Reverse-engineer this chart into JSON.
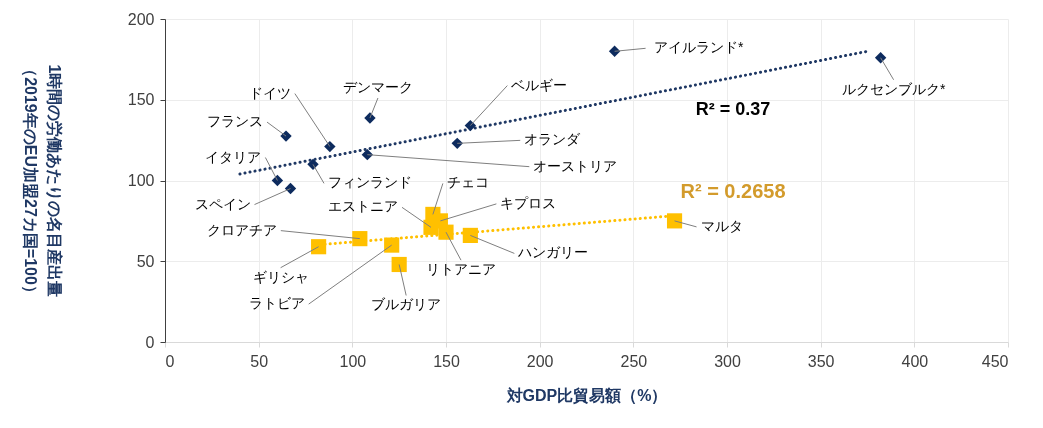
{
  "chart_data": {
    "type": "scatter",
    "xlabel": "対GDP比貿易額（%）",
    "ylabel": "1時間の労働あたりの名目産出量（2019年のEU加盟27カ国=100）",
    "xlim": [
      0,
      450
    ],
    "xticks": [
      0,
      50,
      100,
      150,
      200,
      250,
      300,
      350,
      400,
      450
    ],
    "ylim": [
      0,
      200
    ],
    "yticks": [
      0,
      50,
      100,
      150,
      200
    ],
    "grid": true,
    "series": [
      {
        "type": "line",
        "color": "#1f3864",
        "line_style": "dotted",
        "x": [
          40,
          375
        ],
        "values": [
          104,
          180
        ]
      },
      {
        "type": "line",
        "color": "#ffc000",
        "line_style": "dotted",
        "x": [
          80,
          270
        ],
        "values": [
          60,
          78
        ]
      },
      {
        "color": "#0d2b5e",
        "marker": "diamond",
        "x": [
          64.6,
          88,
          109.4,
          79,
          108,
          60,
          67,
          163,
          156,
          240,
          382
        ],
        "values": [
          127.5,
          121,
          138.7,
          110,
          116,
          100,
          95,
          134,
          123,
          180,
          176
        ]
      },
      {
        "color": "#ffc000",
        "marker": "square",
        "x": [
          82,
          104,
          121,
          125,
          143,
          147,
          142,
          150,
          163,
          272
        ],
        "values": [
          59,
          64,
          60,
          48,
          79,
          75,
          71,
          68,
          66,
          75
        ]
      }
    ],
    "annotations": [
      {
        "text": "フランス",
        "x": 64.6,
        "y": 127.5
      },
      {
        "text": "ドイツ",
        "x": 88,
        "y": 121
      },
      {
        "text": "デンマーク",
        "x": 109.4,
        "y": 138.7
      },
      {
        "text": "フィンランド",
        "x": 79,
        "y": 110
      },
      {
        "text": "オーストリア",
        "x": 108,
        "y": 116
      },
      {
        "text": "イタリア",
        "x": 60,
        "y": 100
      },
      {
        "text": "スペイン",
        "x": 67,
        "y": 95
      },
      {
        "text": "ベルギー",
        "x": 163,
        "y": 134
      },
      {
        "text": "オランダ",
        "x": 156,
        "y": 123
      },
      {
        "text": "アイルランド*",
        "x": 240,
        "y": 180
      },
      {
        "text": "ルクセンブルク*",
        "x": 382,
        "y": 176
      },
      {
        "text": "ギリシャ",
        "x": 82,
        "y": 59
      },
      {
        "text": "クロアチア",
        "x": 104,
        "y": 64
      },
      {
        "text": "ラトビア",
        "x": 121,
        "y": 60
      },
      {
        "text": "ブルガリア",
        "x": 125,
        "y": 48
      },
      {
        "text": "チェコ",
        "x": 143,
        "y": 79
      },
      {
        "text": "キプロス",
        "x": 147,
        "y": 75
      },
      {
        "text": "エストニア",
        "x": 142,
        "y": 71
      },
      {
        "text": "リトアニア",
        "x": 150,
        "y": 68
      },
      {
        "text": "ハンガリー",
        "x": 163,
        "y": 66
      },
      {
        "text": "マルタ",
        "x": 272,
        "y": 75
      },
      "R² = 0.37",
      "R² = 0.2658"
    ]
  }
}
